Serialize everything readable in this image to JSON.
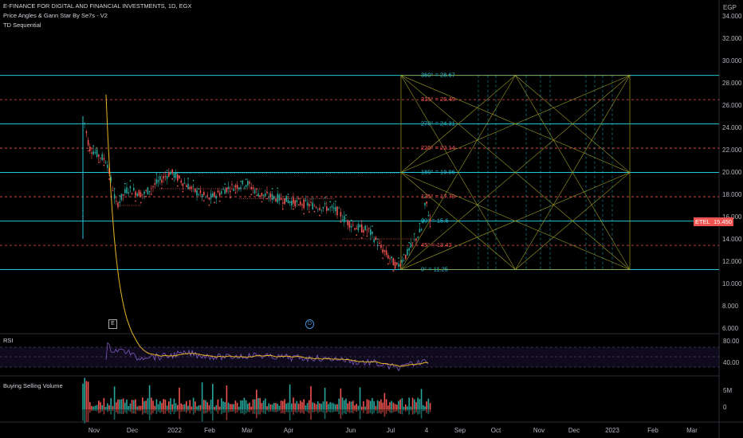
{
  "header": {
    "symbol_line": "E-FINANCE FOR DIGITAL AND FINANCIAL INVESTMENTS, 1D, EGX",
    "indicator_1": "Price Angles & Gann Star By Se7s - V2",
    "indicator_2": "TD Sequential"
  },
  "currency": "EGP",
  "price_axis_ticks": [
    "34.000",
    "32.000",
    "30.000",
    "28.000",
    "26.000",
    "24.000",
    "22.000",
    "20.000",
    "18.000",
    "16.000",
    "14.000",
    "12.000",
    "10.000",
    "8.000",
    "6.000"
  ],
  "last_price": {
    "symbol": "ETEL",
    "value": "15.450",
    "value_num": 15.45
  },
  "time_axis_labels": [
    "Nov",
    "Dec",
    "2022",
    "Feb",
    "Mar",
    "Apr",
    "Jun",
    "Jul",
    "4",
    "Sep",
    "Oct",
    "Nov",
    "Dec",
    "2023",
    "Feb",
    "Mar"
  ],
  "gann_levels": [
    {
      "label": "360° = 28.67",
      "price": 28.67,
      "style": "solid",
      "color": "#26c6da"
    },
    {
      "label": "315° = 26.49",
      "price": 26.49,
      "style": "dashed",
      "color": "#ef5350"
    },
    {
      "label": "270° = 24.31",
      "price": 24.31,
      "style": "solid",
      "color": "#26c6da"
    },
    {
      "label": "225° = 22.14",
      "price": 22.14,
      "style": "dashed",
      "color": "#ef5350"
    },
    {
      "label": "180° = 19.96",
      "price": 19.96,
      "style": "solid",
      "color": "#26c6da"
    },
    {
      "label": "135° = 17.78",
      "price": 17.78,
      "style": "dashed",
      "color": "#ef5350"
    },
    {
      "label": "90° = 15.6",
      "price": 15.6,
      "style": "solid",
      "color": "#26c6da"
    },
    {
      "label": "45° = 13.42",
      "price": 13.42,
      "style": "dashed",
      "color": "#ef5350"
    },
    {
      "label": "0° = 11.25",
      "price": 11.25,
      "style": "solid",
      "color": "#26c6da"
    }
  ],
  "event_markers": [
    {
      "label": "E",
      "kind": "earnings"
    },
    {
      "label": "D",
      "kind": "dividend"
    }
  ],
  "rsi": {
    "title": "RSI",
    "ticks": [
      "80.00",
      "40.00"
    ]
  },
  "volume": {
    "title": "Buying Selling Volume",
    "ticks": [
      "5M",
      "0"
    ]
  },
  "colors": {
    "up": "#26a69a",
    "down": "#ef5350",
    "gann": "#9e9d24",
    "cyan": "#26c6da",
    "rsi_line": "#7e57c2",
    "rsi_ma": "#e6b422"
  },
  "chart_data": {
    "type": "candlestick",
    "price_axis_range": [
      6,
      34
    ],
    "close_path": [
      {
        "date": "Nov",
        "price": 24.5
      },
      {
        "date": "Nov",
        "price": 22.0
      },
      {
        "date": "Nov",
        "price": 21.0
      },
      {
        "date": "Dec",
        "price": 17.0
      },
      {
        "date": "Dec",
        "price": 18.5
      },
      {
        "date": "2022",
        "price": 20.0
      },
      {
        "date": "Feb",
        "price": 18.5
      },
      {
        "date": "Mar",
        "price": 19.0
      },
      {
        "date": "Mar",
        "price": 18.0
      },
      {
        "date": "Apr",
        "price": 17.5
      },
      {
        "date": "Apr",
        "price": 17.0
      },
      {
        "date": "Jun",
        "price": 15.5
      },
      {
        "date": "Jun",
        "price": 14.0
      },
      {
        "date": "Jul",
        "price": 11.5
      },
      {
        "date": "Jul",
        "price": 13.5
      },
      {
        "date": "4",
        "price": 17.5
      },
      {
        "date": "4",
        "price": 15.45
      }
    ]
  }
}
